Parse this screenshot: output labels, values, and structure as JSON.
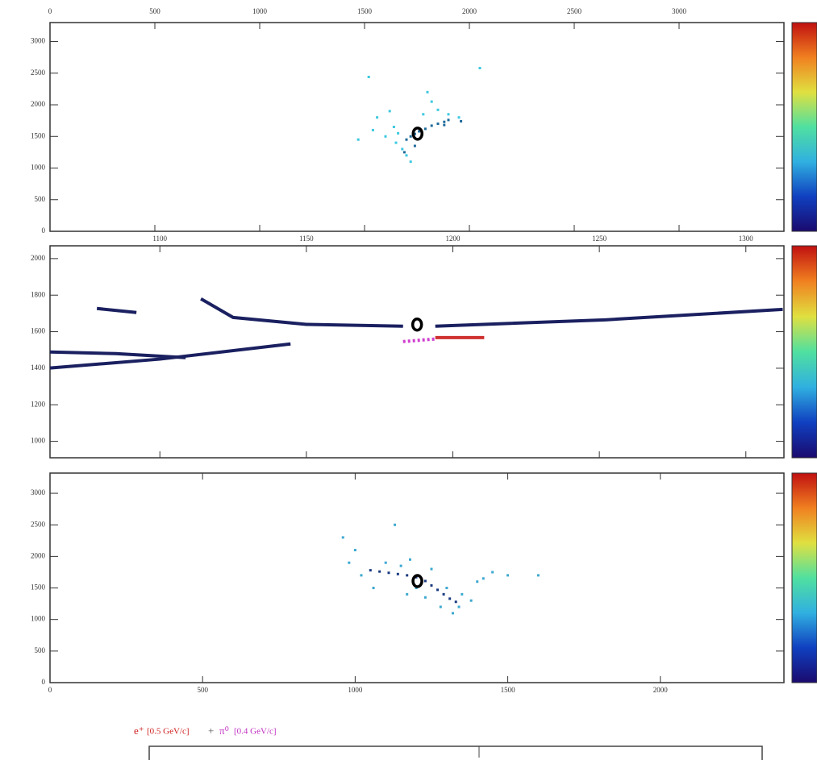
{
  "chart_data": [
    {
      "type": "scatter",
      "xlim": [
        0,
        3500
      ],
      "ylim": [
        0,
        3300
      ],
      "xticks": [
        0,
        500,
        1000,
        1500,
        2000,
        2500,
        3000
      ],
      "yticks": [
        0,
        500,
        1000,
        1500,
        2000,
        2500,
        3000
      ],
      "colorbar": [
        "#1a0a6e",
        "#1040c0",
        "#30b0e0",
        "#50e0a0",
        "#e0e040",
        "#f08020",
        "#c01010"
      ],
      "vertex": {
        "x": 1753,
        "y": 1544
      },
      "series": [
        {
          "color": "#1d6a9a",
          "x": [
            1700,
            1720,
            1740,
            1760,
            1790,
            1820,
            1850,
            1880,
            1900,
            1690,
            1740,
            1880,
            1960
          ],
          "values": [
            1450,
            1500,
            1540,
            1580,
            1620,
            1670,
            1700,
            1730,
            1760,
            1250,
            1350,
            1680,
            1740
          ]
        },
        {
          "color": "#3cc8e0",
          "x": [
            1660,
            1650,
            1680,
            1700,
            1720,
            1640,
            1600,
            1560,
            1620,
            1780,
            1850,
            1900,
            1950,
            1820,
            1800,
            1470,
            1520,
            2050,
            1540
          ],
          "values": [
            1550,
            1400,
            1300,
            1200,
            1100,
            1650,
            1500,
            1800,
            1900,
            1850,
            1920,
            1850,
            1800,
            2050,
            2200,
            1450,
            2440,
            2580,
            1600
          ]
        }
      ]
    },
    {
      "type": "line",
      "xlim": [
        1062.5,
        1313
      ],
      "ylim": [
        910,
        2070
      ],
      "xticks": [
        1100,
        1150,
        1200,
        1250,
        1300
      ],
      "yticks": [
        1000,
        1200,
        1400,
        1600,
        1800,
        2000
      ],
      "colorbar": [
        "#1a0a6e",
        "#1040c0",
        "#30b0e0",
        "#50e0a0",
        "#e0e040",
        "#f08020",
        "#c01010"
      ],
      "vertex": {
        "x": 1187.8,
        "y": 1639
      },
      "series": [
        {
          "color": "#1a2060",
          "style": "solid",
          "x": [
            1062.5,
            1100,
            1144.6
          ],
          "values": [
            1401,
            1450,
            1533
          ]
        },
        {
          "color": "#1a2060",
          "style": "solid",
          "x": [
            1062.5,
            1085,
            1108.8
          ],
          "values": [
            1489,
            1480,
            1458
          ]
        },
        {
          "color": "#1a2060",
          "style": "solid",
          "x": [
            1194,
            1252,
            1312.6
          ],
          "values": [
            1630,
            1665,
            1722
          ]
        },
        {
          "color": "#1a2060",
          "style": "solid",
          "x": [
            1114,
            1125,
            1150,
            1183
          ],
          "values": [
            1780,
            1678,
            1640,
            1630
          ]
        },
        {
          "color": "#1a2060",
          "style": "solid",
          "x": [
            1078.5,
            1092
          ],
          "values": [
            1727,
            1705
          ]
        },
        {
          "color": "#d040d0",
          "style": "dotted",
          "x": [
            1183,
            1194
          ],
          "values": [
            1546,
            1560
          ]
        },
        {
          "color": "#d03030",
          "style": "solid",
          "x": [
            1194,
            1210.7
          ],
          "values": [
            1568,
            1568
          ]
        }
      ]
    },
    {
      "type": "scatter",
      "xlim": [
        0,
        2405
      ],
      "ylim": [
        0,
        3320
      ],
      "xticks": [
        0,
        500,
        1000,
        1500,
        2000
      ],
      "yticks": [
        0,
        500,
        1000,
        1500,
        2000,
        2500,
        3000
      ],
      "colorbar": [
        "#1a0a6e",
        "#1040c0",
        "#30b0e0",
        "#50e0a0",
        "#e0e040",
        "#f08020",
        "#c01010"
      ],
      "vertex": {
        "x": 1204,
        "y": 1609
      },
      "series": [
        {
          "color": "#1a3a80",
          "x": [
            1050,
            1080,
            1110,
            1140,
            1170,
            1200,
            1230,
            1250,
            1270,
            1290,
            1310,
            1330
          ],
          "values": [
            1780,
            1760,
            1740,
            1720,
            1700,
            1670,
            1610,
            1540,
            1470,
            1400,
            1330,
            1280
          ]
        },
        {
          "color": "#3ca8d0",
          "x": [
            960,
            1000,
            980,
            1020,
            1100,
            1150,
            1180,
            1130,
            1250,
            1300,
            1350,
            1380,
            1400,
            1450,
            1500,
            1600,
            1320,
            1280,
            1170,
            1200,
            1060,
            1230,
            1420,
            1340
          ],
          "values": [
            2300,
            2100,
            1900,
            1700,
            1900,
            1850,
            1950,
            2500,
            1800,
            1500,
            1400,
            1300,
            1600,
            1750,
            1700,
            1700,
            1100,
            1200,
            1400,
            1500,
            1500,
            1350,
            1650,
            1200
          ]
        }
      ]
    }
  ],
  "caption": {
    "particle1": "e⁺",
    "energy1": "[0.5 GeV/c]",
    "plus": "+",
    "particle2": "π⁰",
    "energy2": "[0.4 GeV/c]"
  }
}
